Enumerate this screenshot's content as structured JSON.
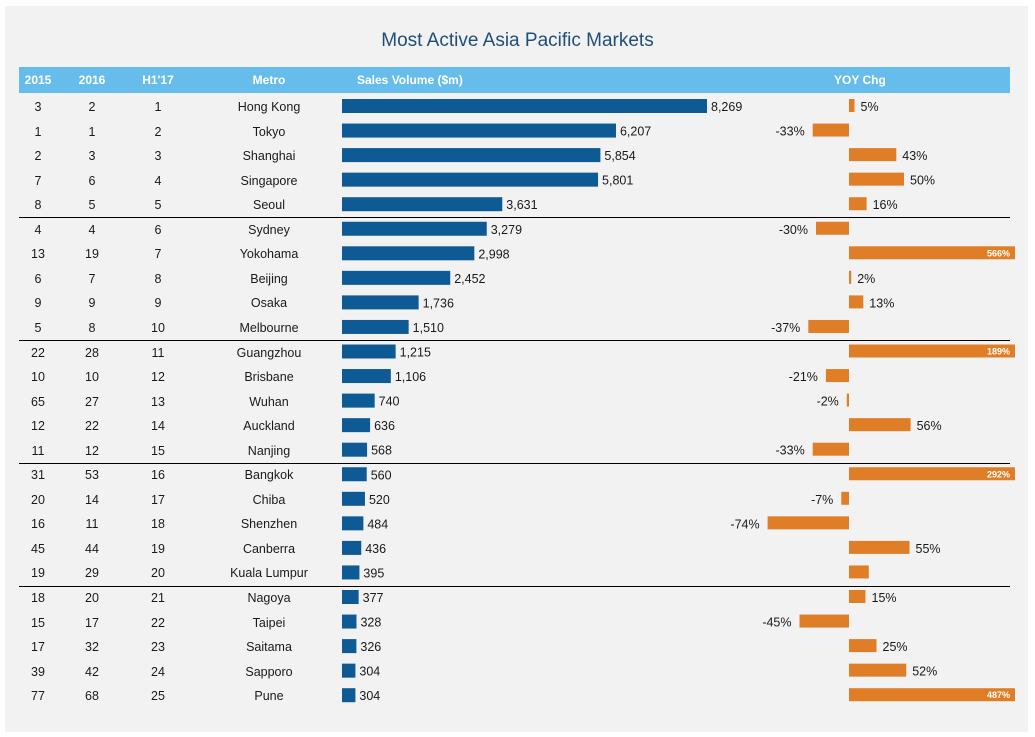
{
  "chart_data": {
    "type": "table",
    "title": "Most Active Asia Pacific Markets",
    "columns": [
      "2015",
      "2016",
      "H1'17",
      "Metro",
      "Sales Volume ($m)",
      "YOY Chg"
    ],
    "rows": [
      {
        "r2015": "3",
        "r2016": "2",
        "rh117": "1",
        "metro": "Hong Kong",
        "sales": 8269,
        "sales_label": "8,269",
        "yoy": 5,
        "yoy_label": "5%"
      },
      {
        "r2015": "1",
        "r2016": "1",
        "rh117": "2",
        "metro": "Tokyo",
        "sales": 6207,
        "sales_label": "6,207",
        "yoy": -33,
        "yoy_label": "-33%"
      },
      {
        "r2015": "2",
        "r2016": "3",
        "rh117": "3",
        "metro": "Shanghai",
        "sales": 5854,
        "sales_label": "5,854",
        "yoy": 43,
        "yoy_label": "43%"
      },
      {
        "r2015": "7",
        "r2016": "6",
        "rh117": "4",
        "metro": "Singapore",
        "sales": 5801,
        "sales_label": "5,801",
        "yoy": 50,
        "yoy_label": "50%"
      },
      {
        "r2015": "8",
        "r2016": "5",
        "rh117": "5",
        "metro": "Seoul",
        "sales": 3631,
        "sales_label": "3,631",
        "yoy": 16,
        "yoy_label": "16%"
      },
      {
        "r2015": "4",
        "r2016": "4",
        "rh117": "6",
        "metro": "Sydney",
        "sales": 3279,
        "sales_label": "3,279",
        "yoy": -30,
        "yoy_label": "-30%"
      },
      {
        "r2015": "13",
        "r2016": "19",
        "rh117": "7",
        "metro": "Yokohama",
        "sales": 2998,
        "sales_label": "2,998",
        "yoy": 566,
        "yoy_label": "566%"
      },
      {
        "r2015": "6",
        "r2016": "7",
        "rh117": "8",
        "metro": "Beijing",
        "sales": 2452,
        "sales_label": "2,452",
        "yoy": 2,
        "yoy_label": "2%"
      },
      {
        "r2015": "9",
        "r2016": "9",
        "rh117": "9",
        "metro": "Osaka",
        "sales": 1736,
        "sales_label": "1,736",
        "yoy": 13,
        "yoy_label": "13%"
      },
      {
        "r2015": "5",
        "r2016": "8",
        "rh117": "10",
        "metro": "Melbourne",
        "sales": 1510,
        "sales_label": "1,510",
        "yoy": -37,
        "yoy_label": "-37%"
      },
      {
        "r2015": "22",
        "r2016": "28",
        "rh117": "11",
        "metro": "Guangzhou",
        "sales": 1215,
        "sales_label": "1,215",
        "yoy": 189,
        "yoy_label": "189%"
      },
      {
        "r2015": "10",
        "r2016": "10",
        "rh117": "12",
        "metro": "Brisbane",
        "sales": 1106,
        "sales_label": "1,106",
        "yoy": -21,
        "yoy_label": "-21%"
      },
      {
        "r2015": "65",
        "r2016": "27",
        "rh117": "13",
        "metro": "Wuhan",
        "sales": 740,
        "sales_label": "740",
        "yoy": -2,
        "yoy_label": "-2%"
      },
      {
        "r2015": "12",
        "r2016": "22",
        "rh117": "14",
        "metro": "Auckland",
        "sales": 636,
        "sales_label": "636",
        "yoy": 56,
        "yoy_label": "56%"
      },
      {
        "r2015": "11",
        "r2016": "12",
        "rh117": "15",
        "metro": "Nanjing",
        "sales": 568,
        "sales_label": "568",
        "yoy": -33,
        "yoy_label": "-33%"
      },
      {
        "r2015": "31",
        "r2016": "53",
        "rh117": "16",
        "metro": "Bangkok",
        "sales": 560,
        "sales_label": "560",
        "yoy": 292,
        "yoy_label": "292%"
      },
      {
        "r2015": "20",
        "r2016": "14",
        "rh117": "17",
        "metro": "Chiba",
        "sales": 520,
        "sales_label": "520",
        "yoy": -7,
        "yoy_label": "-7%"
      },
      {
        "r2015": "16",
        "r2016": "11",
        "rh117": "18",
        "metro": "Shenzhen",
        "sales": 484,
        "sales_label": "484",
        "yoy": -74,
        "yoy_label": "-74%"
      },
      {
        "r2015": "45",
        "r2016": "44",
        "rh117": "19",
        "metro": "Canberra",
        "sales": 436,
        "sales_label": "436",
        "yoy": 55,
        "yoy_label": "55%"
      },
      {
        "r2015": "19",
        "r2016": "29",
        "rh117": "20",
        "metro": "Kuala Lumpur",
        "sales": 395,
        "sales_label": "395",
        "yoy": 18,
        "yoy_label": ""
      },
      {
        "r2015": "18",
        "r2016": "20",
        "rh117": "21",
        "metro": "Nagoya",
        "sales": 377,
        "sales_label": "377",
        "yoy": 15,
        "yoy_label": "15%"
      },
      {
        "r2015": "15",
        "r2016": "17",
        "rh117": "22",
        "metro": "Taipei",
        "sales": 328,
        "sales_label": "328",
        "yoy": -45,
        "yoy_label": "-45%"
      },
      {
        "r2015": "17",
        "r2016": "32",
        "rh117": "23",
        "metro": "Saitama",
        "sales": 326,
        "sales_label": "326",
        "yoy": 25,
        "yoy_label": "25%"
      },
      {
        "r2015": "39",
        "r2016": "42",
        "rh117": "24",
        "metro": "Sapporo",
        "sales": 304,
        "sales_label": "304",
        "yoy": 52,
        "yoy_label": "52%"
      },
      {
        "r2015": "77",
        "r2016": "68",
        "rh117": "25",
        "metro": "Pune",
        "sales": 304,
        "sales_label": "304",
        "yoy": 487,
        "yoy_label": "487%"
      }
    ],
    "colors": {
      "sales_bar": "#0e5a94",
      "yoy_bar": "#e07e27",
      "header_bg": "#66bdeb",
      "title": "#1f4e79"
    }
  }
}
